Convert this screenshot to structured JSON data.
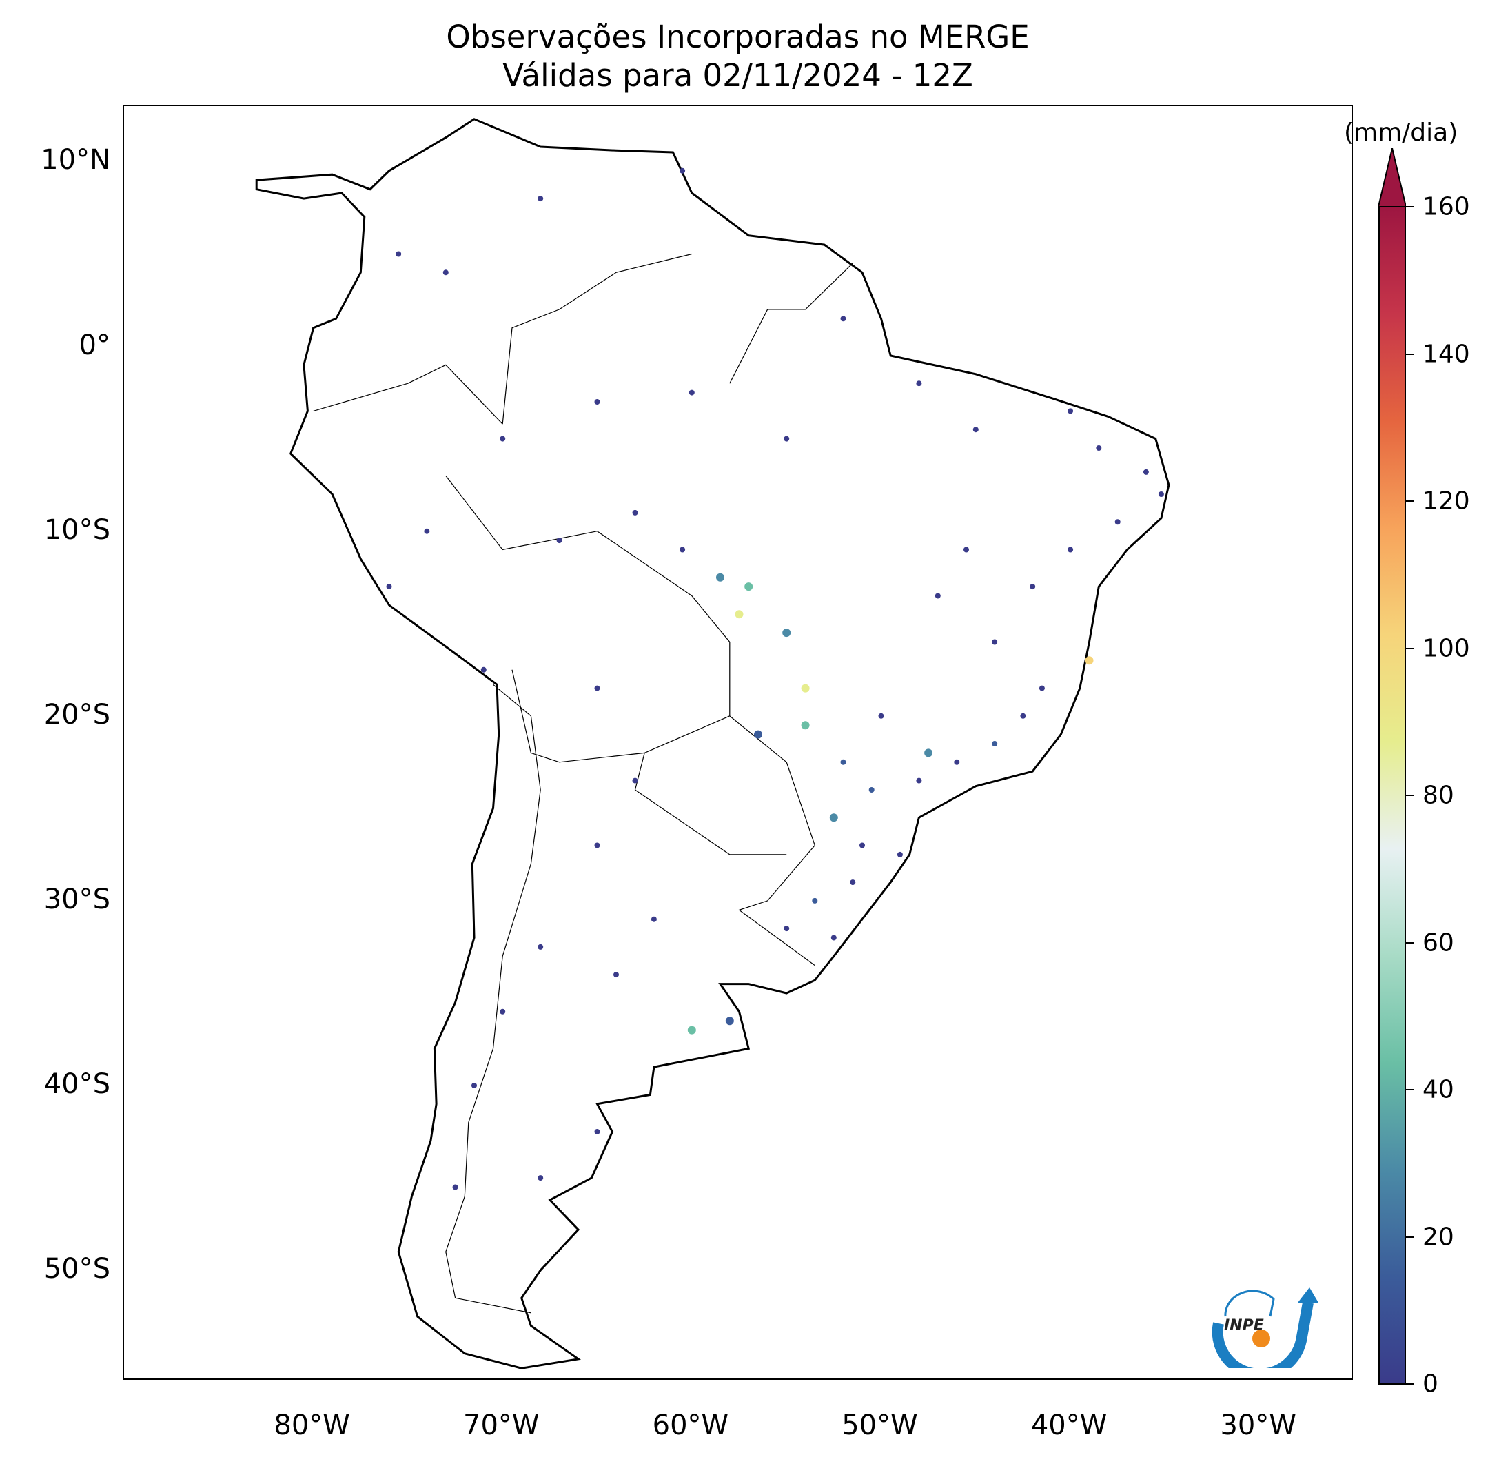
{
  "title": {
    "line1": "Observações Incorporadas no MERGE",
    "line2": "Válidas para 02/11/2024 - 12Z"
  },
  "map": {
    "lat_labels": [
      "10°N",
      "0°",
      "10°S",
      "20°S",
      "30°S",
      "40°S",
      "50°S"
    ],
    "lat_values": [
      10,
      0,
      -10,
      -20,
      -30,
      -40,
      -50
    ],
    "lon_labels": [
      "80°W",
      "70°W",
      "60°W",
      "50°W",
      "40°W",
      "30°W"
    ],
    "lon_values": [
      -80,
      -70,
      -60,
      -50,
      -40,
      -30
    ],
    "extent": {
      "lon_min": -90,
      "lon_max": -25,
      "lat_min": -56,
      "lat_max": 13
    },
    "land_color": "#ffffff",
    "coast_color": "#000000"
  },
  "colorbar": {
    "unit": "(mm/dia)",
    "ticks": [
      "0",
      "20",
      "40",
      "60",
      "80",
      "100",
      "120",
      "140",
      "160"
    ],
    "min": 0,
    "max": 160,
    "extend": "max",
    "colors": [
      "#3a3b8a",
      "#3b5c9a",
      "#4b8aa6",
      "#6abfa5",
      "#a8dbc6",
      "#e8f1f2",
      "#e6ed8e",
      "#f6d47a",
      "#f7a35b",
      "#e5653f",
      "#c6354a",
      "#9d1641"
    ]
  },
  "logo": {
    "text": "INPE"
  },
  "chart_data": {
    "type": "scatter",
    "title": "Observações Incorporadas no MERGE Válidas para 02/11/2024 - 12Z",
    "xlabel": "",
    "ylabel": "",
    "xlim": [
      -90,
      -25
    ],
    "ylim": [
      -56,
      13
    ],
    "colorbar_range": [
      0,
      160
    ],
    "series": [
      {
        "points_sample": [
          [
            -75.5,
            5.0,
            3
          ],
          [
            -73.0,
            4.0,
            4
          ],
          [
            -68.0,
            8.0,
            2
          ],
          [
            -60.5,
            9.5,
            3
          ],
          [
            -52.0,
            1.5,
            5
          ],
          [
            -48.0,
            -2.0,
            3
          ],
          [
            -45.0,
            -4.5,
            4
          ],
          [
            -40.0,
            -3.5,
            2
          ],
          [
            -38.5,
            -5.5,
            4
          ],
          [
            -36.0,
            -6.8,
            5
          ],
          [
            -35.2,
            -8.0,
            3
          ],
          [
            -37.5,
            -9.5,
            3
          ],
          [
            -40.0,
            -11.0,
            4
          ],
          [
            -42.0,
            -13.0,
            3
          ],
          [
            -45.5,
            -11.0,
            4
          ],
          [
            -47.0,
            -13.5,
            5
          ],
          [
            -44.0,
            -16.0,
            6
          ],
          [
            -41.5,
            -18.5,
            8
          ],
          [
            -42.5,
            -20.0,
            12
          ],
          [
            -44.0,
            -21.5,
            15
          ],
          [
            -46.0,
            -22.5,
            10
          ],
          [
            -48.0,
            -23.5,
            6
          ],
          [
            -50.5,
            -24.0,
            20
          ],
          [
            -52.5,
            -25.5,
            30
          ],
          [
            -51.0,
            -27.0,
            12
          ],
          [
            -49.0,
            -27.5,
            6
          ],
          [
            -51.5,
            -29.0,
            8
          ],
          [
            -53.5,
            -30.0,
            14
          ],
          [
            -55.0,
            -31.5,
            5
          ],
          [
            -52.5,
            -32.0,
            4
          ],
          [
            -57.0,
            -13.0,
            45
          ],
          [
            -57.5,
            -14.5,
            80
          ],
          [
            -55.0,
            -15.5,
            30
          ],
          [
            -58.5,
            -12.5,
            35
          ],
          [
            -54.0,
            -18.5,
            90
          ],
          [
            -54.0,
            -20.5,
            40
          ],
          [
            -56.5,
            -21.0,
            25
          ],
          [
            -60.5,
            -11.0,
            4
          ],
          [
            -63.0,
            -9.0,
            2
          ],
          [
            -67.0,
            -10.5,
            3
          ],
          [
            -70.0,
            -5.0,
            3
          ],
          [
            -65.0,
            -3.0,
            2
          ],
          [
            -60.0,
            -2.5,
            3
          ],
          [
            -55.0,
            -5.0,
            4
          ],
          [
            -74.0,
            -10.0,
            2
          ],
          [
            -76.0,
            -13.0,
            3
          ],
          [
            -71.0,
            -17.5,
            2
          ],
          [
            -65.0,
            -18.5,
            3
          ],
          [
            -63.0,
            -23.5,
            3
          ],
          [
            -65.0,
            -27.0,
            4
          ],
          [
            -62.0,
            -31.0,
            3
          ],
          [
            -64.0,
            -34.0,
            5
          ],
          [
            -60.0,
            -37.0,
            40
          ],
          [
            -58.0,
            -36.5,
            25
          ],
          [
            -68.0,
            -32.5,
            3
          ],
          [
            -70.0,
            -36.0,
            3
          ],
          [
            -71.5,
            -40.0,
            4
          ],
          [
            -72.5,
            -45.5,
            3
          ],
          [
            -68.0,
            -45.0,
            2
          ],
          [
            -65.0,
            -42.5,
            3
          ],
          [
            -39.0,
            -17.0,
            100
          ],
          [
            -47.5,
            -22.0,
            38
          ],
          [
            -52.0,
            -22.5,
            18
          ],
          [
            -50.0,
            -20.0,
            10
          ]
        ]
      }
    ]
  }
}
